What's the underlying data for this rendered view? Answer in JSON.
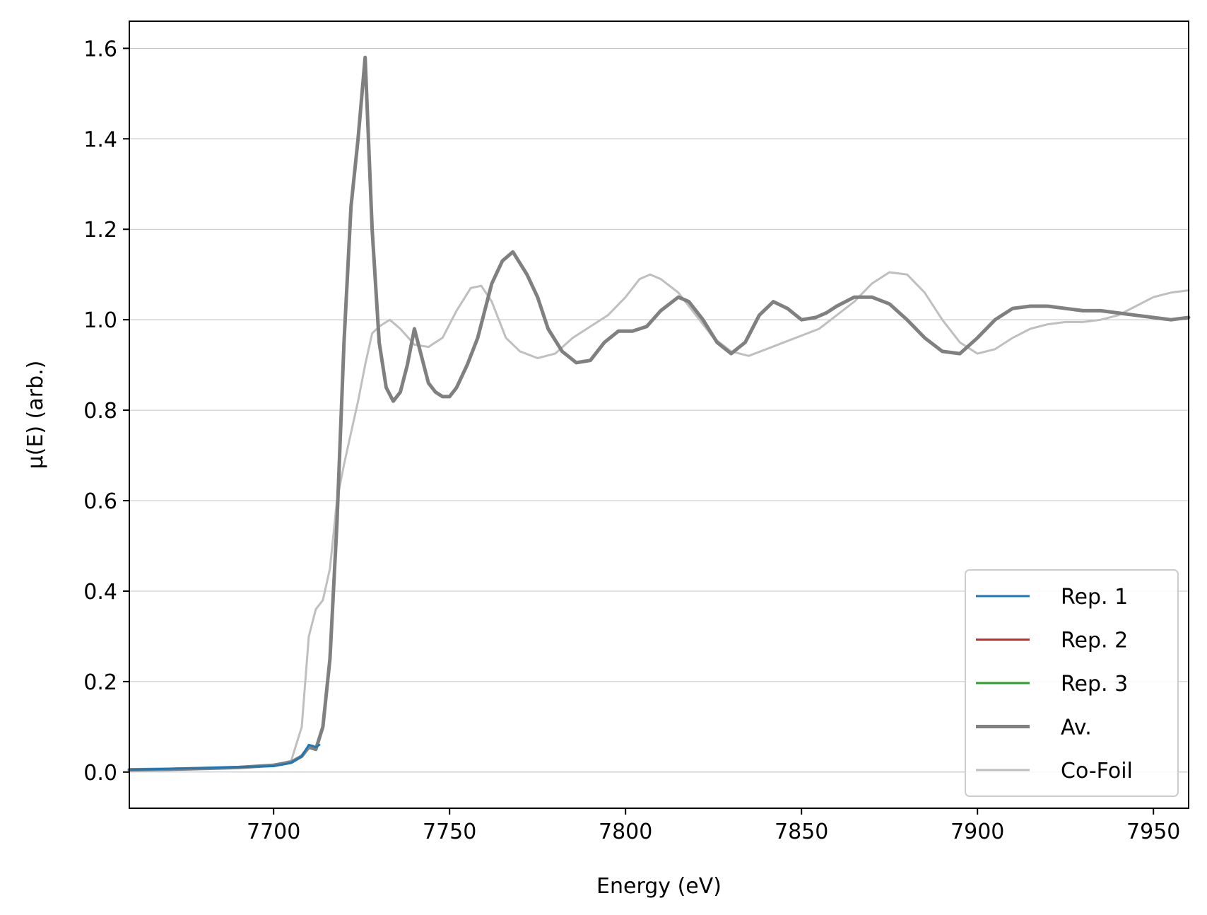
{
  "chart_data": {
    "type": "line",
    "xlabel": "Energy (eV)",
    "ylabel": "μ(E) (arb.)",
    "xlim": [
      7659,
      7960
    ],
    "ylim": [
      -0.08,
      1.66
    ],
    "xticks": [
      7700,
      7750,
      7800,
      7850,
      7900,
      7950
    ],
    "yticks": [
      0.0,
      0.2,
      0.4,
      0.6,
      0.8,
      1.0,
      1.2,
      1.4,
      1.6
    ],
    "grid": "horizontal",
    "legend_position": "bottom-right",
    "series": [
      {
        "name": "Rep. 1",
        "color": "#1f77b4",
        "width": 3,
        "x": [
          7659,
          7700,
          7705,
          7708,
          7710,
          7711,
          7712,
          7713
        ],
        "y": [
          0.005,
          0.013,
          0.02,
          0.035,
          0.06,
          0.058,
          0.055,
          0.06
        ]
      },
      {
        "name": "Rep. 2",
        "color": "#d62728",
        "width": 3,
        "x": [],
        "y": []
      },
      {
        "name": "Rep. 3",
        "color": "#2ca02c",
        "width": 3,
        "x": [],
        "y": []
      },
      {
        "name": "Av.",
        "color": "#808080",
        "width": 5,
        "x": [
          7659,
          7670,
          7680,
          7690,
          7700,
          7705,
          7708,
          7710,
          7712,
          7714,
          7716,
          7718,
          7720,
          7722,
          7724,
          7726,
          7728,
          7730,
          7732,
          7734,
          7736,
          7738,
          7740,
          7742,
          7744,
          7746,
          7748,
          7750,
          7752,
          7755,
          7758,
          7762,
          7765,
          7768,
          7772,
          7775,
          7778,
          7782,
          7786,
          7790,
          7794,
          7798,
          7802,
          7806,
          7810,
          7815,
          7818,
          7822,
          7826,
          7830,
          7834,
          7838,
          7842,
          7846,
          7850,
          7854,
          7857,
          7860,
          7865,
          7870,
          7875,
          7880,
          7885,
          7890,
          7895,
          7900,
          7905,
          7910,
          7915,
          7920,
          7925,
          7930,
          7935,
          7940,
          7945,
          7950,
          7955,
          7960
        ],
        "y": [
          0.005,
          0.006,
          0.008,
          0.01,
          0.015,
          0.022,
          0.035,
          0.055,
          0.05,
          0.1,
          0.25,
          0.55,
          0.95,
          1.25,
          1.4,
          1.58,
          1.2,
          0.95,
          0.85,
          0.82,
          0.84,
          0.9,
          0.98,
          0.92,
          0.86,
          0.84,
          0.83,
          0.83,
          0.85,
          0.9,
          0.96,
          1.08,
          1.13,
          1.15,
          1.1,
          1.05,
          0.98,
          0.93,
          0.905,
          0.91,
          0.95,
          0.975,
          0.975,
          0.985,
          1.02,
          1.05,
          1.04,
          1.0,
          0.95,
          0.925,
          0.95,
          1.01,
          1.04,
          1.025,
          1.0,
          1.005,
          1.015,
          1.03,
          1.05,
          1.05,
          1.035,
          1.0,
          0.96,
          0.93,
          0.925,
          0.96,
          1.0,
          1.025,
          1.03,
          1.03,
          1.025,
          1.02,
          1.02,
          1.015,
          1.01,
          1.005,
          1.0,
          1.005
        ]
      },
      {
        "name": "Co-Foil",
        "color": "#bfbfbf",
        "width": 3,
        "x": [
          7659,
          7680,
          7700,
          7705,
          7708,
          7710,
          7712,
          7714,
          7716,
          7718,
          7720,
          7722,
          7724,
          7726,
          7728,
          7730,
          7733,
          7736,
          7740,
          7744,
          7748,
          7752,
          7756,
          7759,
          7762,
          7766,
          7770,
          7775,
          7780,
          7785,
          7790,
          7795,
          7800,
          7804,
          7807,
          7810,
          7815,
          7820,
          7825,
          7830,
          7835,
          7840,
          7845,
          7850,
          7855,
          7860,
          7865,
          7870,
          7875,
          7880,
          7885,
          7890,
          7895,
          7900,
          7905,
          7910,
          7915,
          7920,
          7925,
          7930,
          7935,
          7940,
          7945,
          7950,
          7955,
          7960
        ],
        "y": [
          0.005,
          0.008,
          0.015,
          0.025,
          0.1,
          0.3,
          0.36,
          0.38,
          0.45,
          0.6,
          0.68,
          0.75,
          0.82,
          0.9,
          0.97,
          0.985,
          1.0,
          0.98,
          0.945,
          0.94,
          0.96,
          1.02,
          1.07,
          1.075,
          1.04,
          0.96,
          0.93,
          0.915,
          0.925,
          0.96,
          0.985,
          1.01,
          1.05,
          1.09,
          1.1,
          1.09,
          1.06,
          1.01,
          0.96,
          0.93,
          0.92,
          0.935,
          0.95,
          0.965,
          0.98,
          1.01,
          1.04,
          1.08,
          1.105,
          1.1,
          1.06,
          1.0,
          0.95,
          0.925,
          0.935,
          0.96,
          0.98,
          0.99,
          0.995,
          0.995,
          1.0,
          1.01,
          1.03,
          1.05,
          1.06,
          1.065
        ]
      }
    ]
  }
}
